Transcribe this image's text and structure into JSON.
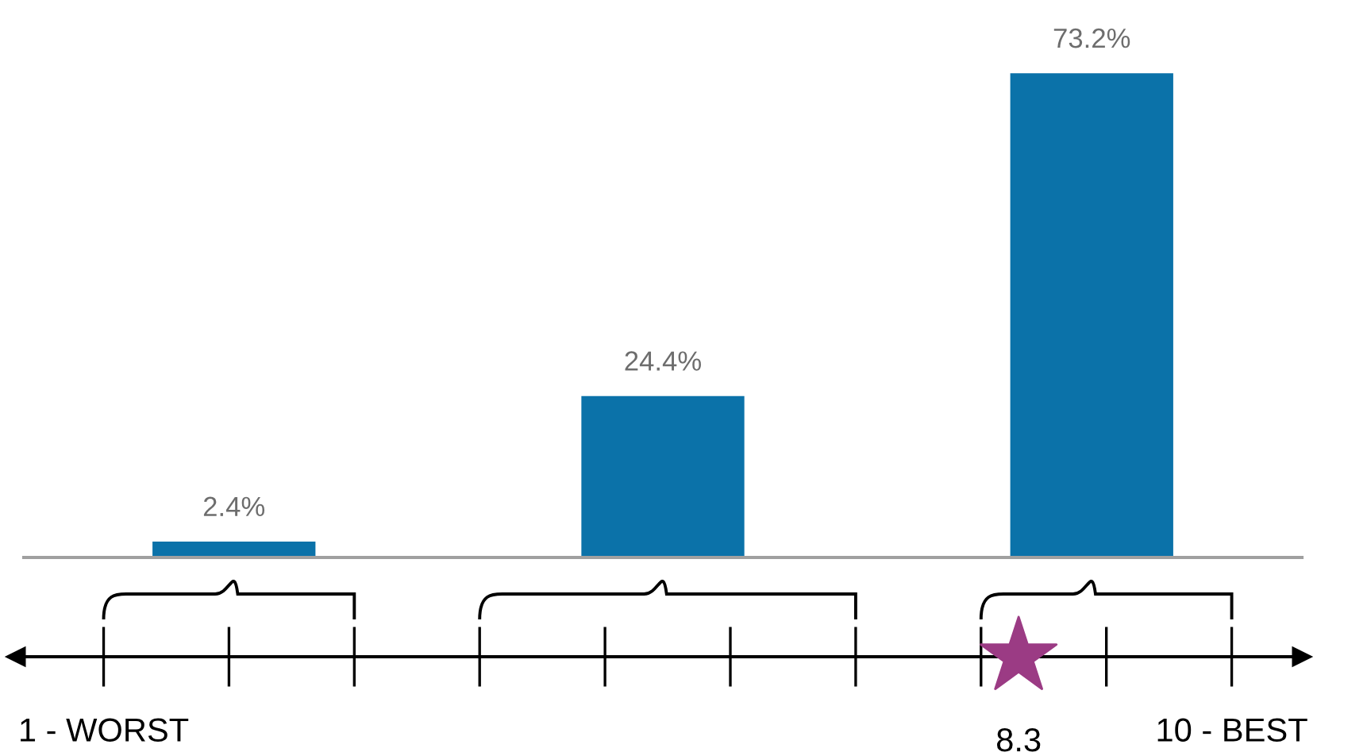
{
  "chart_data": [
    {
      "type": "bar",
      "categories": [
        null,
        null,
        null
      ],
      "values": [
        2.4,
        24.4,
        73.2
      ],
      "color": "#0b72a9",
      "value_labels": [
        "2.4%",
        "24.4%",
        "73.2%"
      ],
      "tick_labels": false
    },
    {
      "type": "other",
      "color": "#9b3b84",
      "annotations": [
        "1 - WORST",
        "10 - BEST",
        "8.3"
      ]
    }
  ]
}
